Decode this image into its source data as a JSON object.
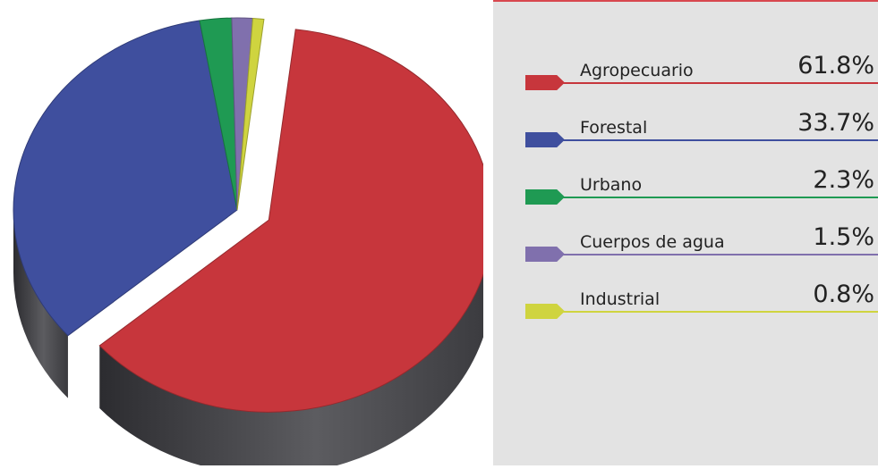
{
  "chart_data": {
    "type": "pie",
    "title": "",
    "categories": [
      "Agropecuario",
      "Forestal",
      "Urbano",
      "Cuerpos de agua",
      "Industrial"
    ],
    "values": [
      61.8,
      33.7,
      2.3,
      1.5,
      0.8
    ],
    "value_labels": [
      "61.8%",
      "33.7%",
      "2.3%",
      "1.5%",
      "0.8%"
    ],
    "colors": [
      "#c7363c",
      "#3f4f9e",
      "#1f9a53",
      "#8070ad",
      "#cfd43f"
    ],
    "legend_position": "right",
    "exploded_slice": "Agropecuario",
    "style": "3d"
  }
}
